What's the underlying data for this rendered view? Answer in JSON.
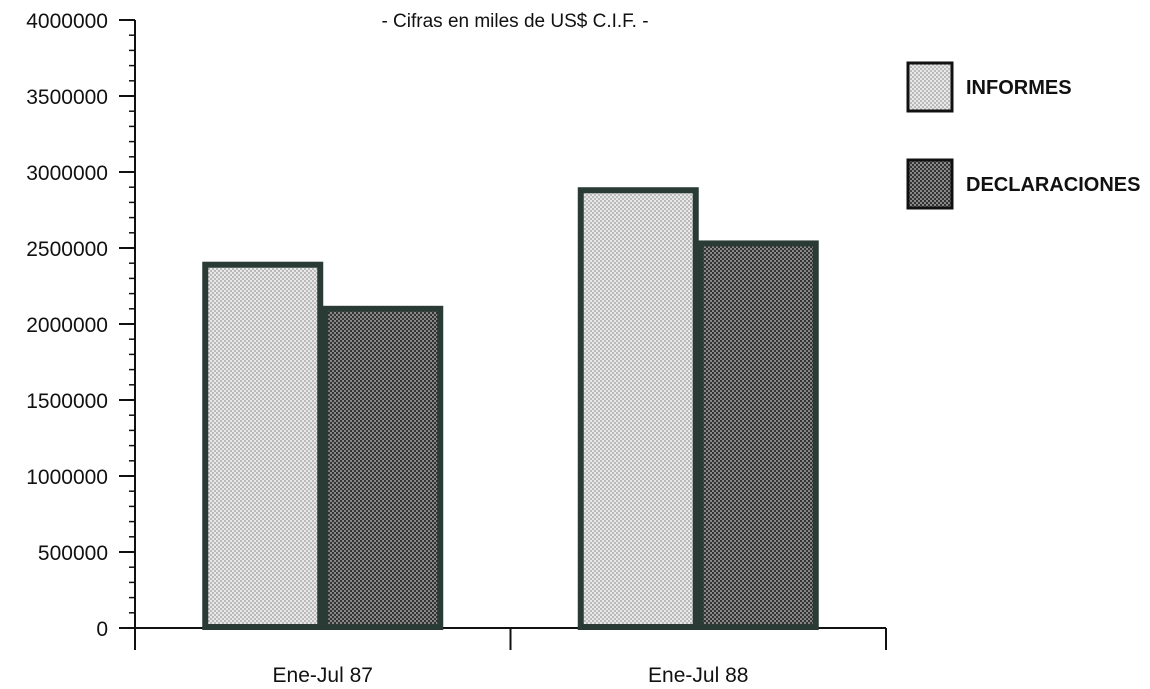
{
  "chart_data": {
    "type": "bar",
    "title": "",
    "subtitle": "- Cifras en miles de US$ C.I.F. -",
    "xlabel": "",
    "ylabel": "",
    "categories": [
      "Ene-Jul 87",
      "Ene-Jul 88"
    ],
    "series": [
      {
        "name": "INFORMES",
        "values": [
          2390000,
          2880000
        ],
        "pattern": "light-dots"
      },
      {
        "name": "DECLARACIONES",
        "values": [
          2100000,
          2530000
        ],
        "pattern": "dark-dots"
      }
    ],
    "ylim": [
      0,
      4000000
    ],
    "yticks": [
      "0",
      "500000",
      "1000000",
      "1500000",
      "2000000",
      "2500000",
      "3000000",
      "3500000",
      "4000000"
    ],
    "ytick_values": [
      0,
      500000,
      1000000,
      1500000,
      2000000,
      2500000,
      3000000,
      3500000,
      4000000
    ],
    "grid": false,
    "legend_position": "top-right"
  },
  "colors": {
    "ink": "#111111",
    "bar_outline": "#2a3a35",
    "light_fill": "#e8e8e8",
    "light_dot": "#9a9a9a",
    "dark_fill": "#8a8a8a",
    "dark_dot": "#2b2b2b"
  }
}
